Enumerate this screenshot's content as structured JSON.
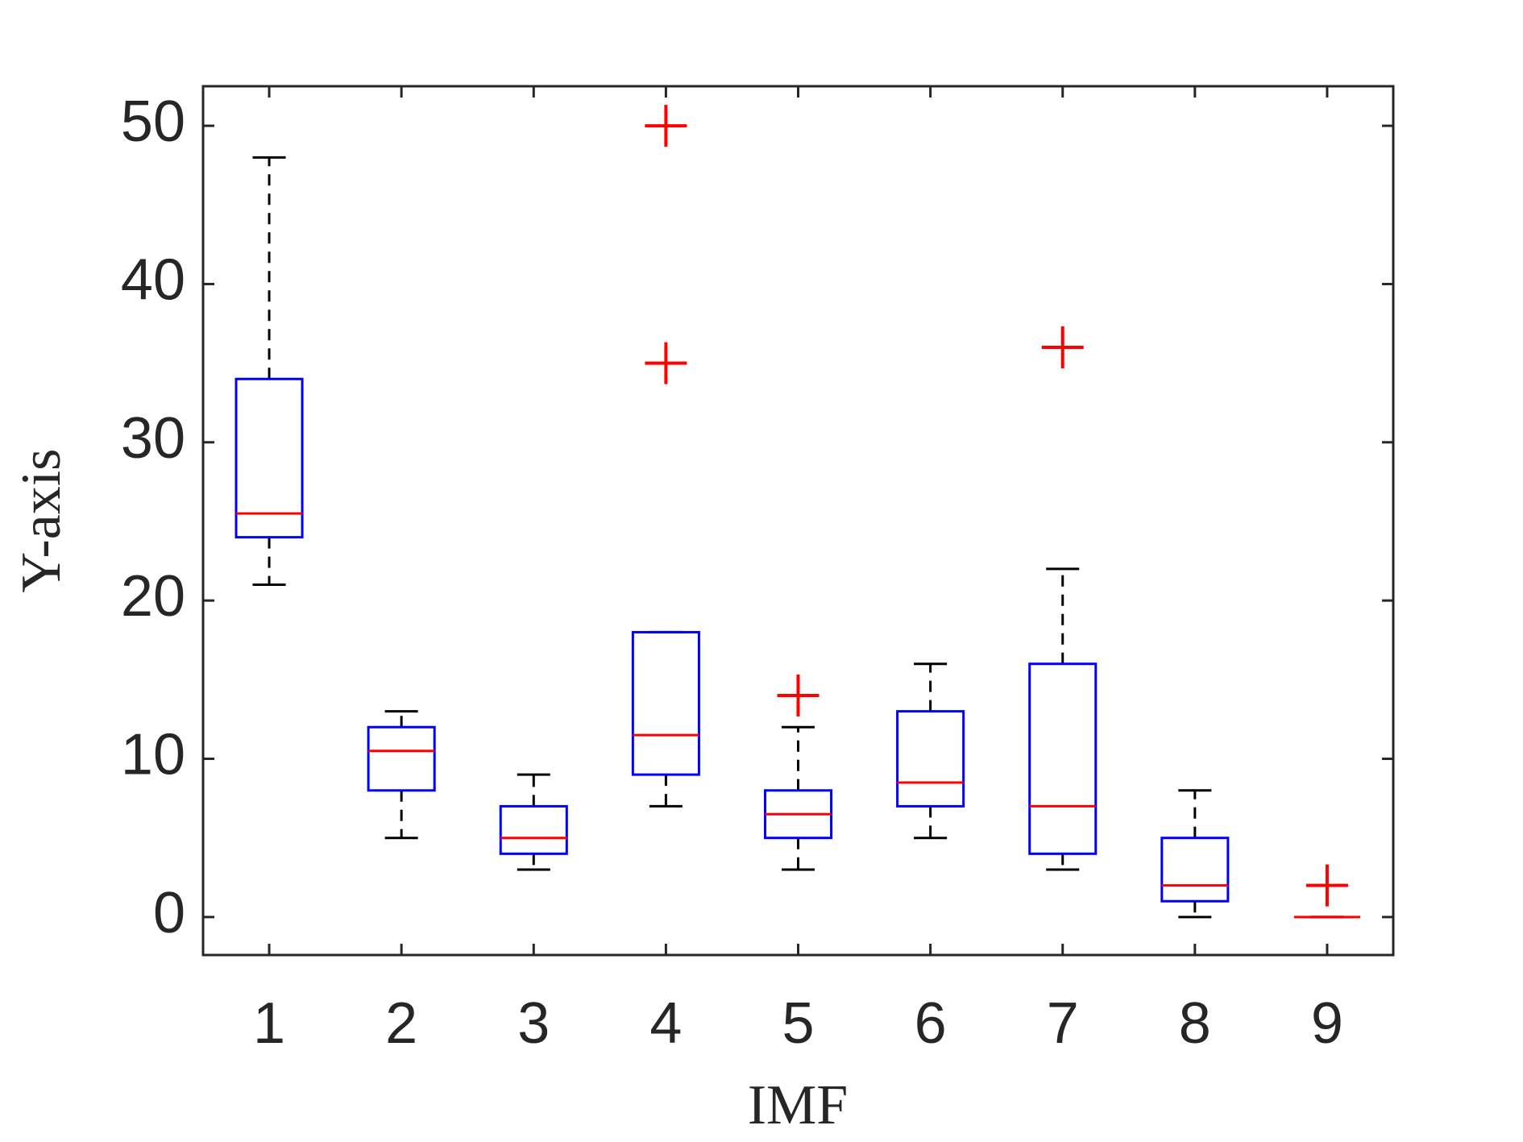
{
  "chart_data": {
    "type": "box",
    "xlabel": "IMF",
    "ylabel": "Y-axis",
    "categories": [
      "1",
      "2",
      "3",
      "4",
      "5",
      "6",
      "7",
      "8",
      "9"
    ],
    "boxes": [
      {
        "min": 21,
        "q1": 24,
        "median": 25.5,
        "q3": 34,
        "max": 48,
        "outliers": []
      },
      {
        "min": 5,
        "q1": 8,
        "median": 10.5,
        "q3": 12,
        "max": 13,
        "outliers": []
      },
      {
        "min": 3,
        "q1": 4,
        "median": 5,
        "q3": 7,
        "max": 9,
        "outliers": []
      },
      {
        "min": 7,
        "q1": 9,
        "median": 11.5,
        "q3": 18,
        "max": 18,
        "outliers": [
          35,
          50
        ]
      },
      {
        "min": 3,
        "q1": 5,
        "median": 6.5,
        "q3": 8,
        "max": 12,
        "outliers": [
          14
        ]
      },
      {
        "min": 5,
        "q1": 7,
        "median": 8.5,
        "q3": 13,
        "max": 16,
        "outliers": []
      },
      {
        "min": 3,
        "q1": 4,
        "median": 7,
        "q3": 16,
        "max": 22,
        "outliers": [
          36
        ]
      },
      {
        "min": 0,
        "q1": 1,
        "median": 2,
        "q3": 5,
        "max": 8,
        "outliers": []
      },
      {
        "min": 0,
        "q1": 0,
        "median": 0,
        "q3": 0,
        "max": 0,
        "outliers": [
          2
        ]
      }
    ],
    "box_color": "#0000ff",
    "median_color": "#ff0000",
    "whisker_color": "#000000",
    "outlier_color": "#ff0000",
    "xlim": [
      0.5,
      9.5
    ],
    "ylim": [
      -2.4,
      52.5
    ],
    "yticks": [
      0,
      10,
      20,
      30,
      40,
      50
    ]
  }
}
